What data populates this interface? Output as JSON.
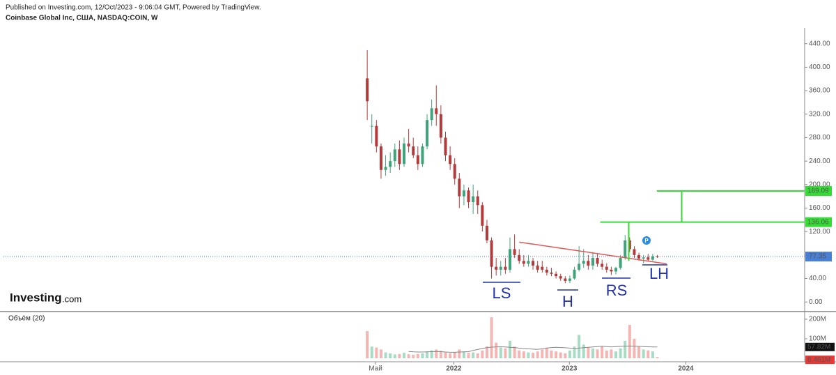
{
  "header": {
    "published": "Published on Investing.com, 12/Oct/2023 - 9:06:04 GMT, Powered by TradingView.",
    "symbol": "Coinbase Global Inc, США, NASDAQ:COIN, W"
  },
  "logo": {
    "name": "Investing",
    "suffix": ".com"
  },
  "chart_data": {
    "type": "candlestick",
    "candles": {
      "open": [
        381,
        300,
        300,
        265,
        225,
        230,
        240,
        260,
        235,
        270,
        265,
        250,
        235,
        265,
        310,
        330,
        320,
        280,
        250,
        235,
        210,
        180,
        190,
        170,
        180,
        165,
        130,
        105,
        60,
        55,
        60,
        55,
        90,
        80,
        70,
        65,
        70,
        62,
        60,
        55,
        50,
        48,
        44,
        40,
        36,
        40,
        55,
        65,
        70,
        62,
        75,
        65,
        60,
        55,
        52,
        58,
        75,
        105,
        90,
        80,
        74,
        76,
        72,
        78
      ],
      "high": [
        429,
        320,
        310,
        270,
        250,
        255,
        270,
        275,
        280,
        295,
        280,
        265,
        270,
        320,
        345,
        369,
        335,
        290,
        265,
        245,
        220,
        200,
        195,
        200,
        190,
        170,
        140,
        110,
        75,
        70,
        75,
        110,
        115,
        90,
        80,
        80,
        75,
        70,
        70,
        60,
        58,
        52,
        48,
        44,
        45,
        60,
        95,
        90,
        80,
        85,
        82,
        72,
        66,
        60,
        60,
        80,
        114,
        110,
        95,
        84,
        80,
        82,
        82,
        80
      ],
      "low": [
        310,
        270,
        255,
        210,
        215,
        220,
        230,
        225,
        230,
        255,
        245,
        225,
        230,
        260,
        300,
        300,
        270,
        240,
        225,
        200,
        160,
        165,
        160,
        150,
        150,
        120,
        100,
        40,
        45,
        45,
        48,
        50,
        75,
        65,
        60,
        60,
        55,
        50,
        50,
        45,
        44,
        40,
        36,
        32,
        32,
        38,
        52,
        58,
        55,
        55,
        60,
        55,
        50,
        46,
        47,
        55,
        72,
        85,
        75,
        70,
        66,
        70,
        70,
        75
      ],
      "close": [
        342,
        300,
        265,
        225,
        230,
        240,
        260,
        235,
        270,
        265,
        250,
        235,
        265,
        310,
        330,
        320,
        280,
        250,
        235,
        210,
        180,
        190,
        170,
        180,
        165,
        130,
        105,
        60,
        55,
        60,
        55,
        90,
        80,
        70,
        65,
        70,
        62,
        55,
        55,
        50,
        48,
        44,
        40,
        36,
        40,
        55,
        65,
        70,
        62,
        75,
        65,
        60,
        55,
        52,
        58,
        75,
        105,
        90,
        80,
        74,
        76,
        72,
        78,
        77.35
      ],
      "up_color": "#3fa37a",
      "down_color": "#b23a3a"
    },
    "xlim": [
      -79,
      95
    ],
    "xticks": [
      {
        "value": 1.8,
        "label": "Май"
      },
      {
        "value": 18.8,
        "label": "2022"
      },
      {
        "value": 43.9,
        "label": "2023"
      },
      {
        "value": 69.2,
        "label": "2024"
      }
    ],
    "ylim": [
      -14,
      467
    ],
    "yticks": [
      {
        "value": 0,
        "label": "0.00"
      },
      {
        "value": 40,
        "label": "40.00"
      },
      {
        "value": 80,
        "label": "80.00"
      },
      {
        "value": 120,
        "label": "120.00"
      },
      {
        "value": 160,
        "label": "160.00"
      },
      {
        "value": 200,
        "label": "200.00"
      },
      {
        "value": 240,
        "label": "240.00"
      },
      {
        "value": 280,
        "label": "280.00"
      },
      {
        "value": 320,
        "label": "320.00"
      },
      {
        "value": 360,
        "label": "360.00"
      },
      {
        "value": 400,
        "label": "400.00"
      },
      {
        "value": 440,
        "label": "440.00"
      }
    ],
    "last_price": 77.35,
    "last_price_color": "#4a7fd6",
    "neckline": {
      "x": [
        33,
        65
      ],
      "y": [
        102,
        65
      ],
      "color": "#e05555"
    },
    "targets": {
      "color": "#33dd33",
      "levels": [
        {
          "value": 136.06,
          "x_start": 50.6
        },
        {
          "value": 189.09,
          "x_start": 62.9
        }
      ],
      "measures": [
        {
          "x": 56.8,
          "y": [
            70,
            136.06
          ]
        },
        {
          "x": 68.3,
          "y": [
            136.06,
            189.09
          ]
        }
      ]
    },
    "pattern_labels": [
      "LS",
      "H",
      "RS",
      "LH"
    ],
    "volume": {
      "title": "Объём (20)",
      "values": [
        139,
        60,
        55,
        45,
        30,
        25,
        20,
        22,
        28,
        20,
        18,
        22,
        25,
        35,
        40,
        45,
        38,
        30,
        25,
        30,
        45,
        35,
        28,
        30,
        25,
        40,
        60,
        210,
        80,
        55,
        50,
        90,
        60,
        40,
        35,
        30,
        28,
        35,
        45,
        55,
        40,
        35,
        30,
        25,
        40,
        60,
        120,
        70,
        55,
        50,
        45,
        60,
        40,
        45,
        35,
        50,
        90,
        171,
        100,
        60,
        45,
        40,
        35,
        6.461
      ],
      "ma": [
        null,
        null,
        null,
        null,
        null,
        null,
        null,
        null,
        null,
        35,
        33,
        32,
        32,
        33,
        34,
        35,
        34,
        32,
        31,
        31,
        32,
        33,
        34,
        40,
        45,
        50,
        55,
        57,
        58,
        59,
        58,
        56,
        55,
        52,
        50,
        48,
        47,
        46,
        48,
        52,
        55,
        56,
        55,
        54,
        52,
        50,
        52,
        54,
        56,
        58,
        60,
        62,
        60,
        58,
        60,
        61,
        62,
        63,
        62,
        61,
        60,
        59,
        58,
        57.82
      ],
      "ylim": [
        0,
        232
      ],
      "yticks": [
        {
          "value": 100,
          "label": "100M"
        },
        {
          "value": 200,
          "label": "200M"
        }
      ],
      "ma_tag": {
        "value": 57.82,
        "label": "57.82M"
      },
      "last_tag": {
        "value": 6.461,
        "label": "6.461M"
      },
      "up_color": "#a6dcc4",
      "down_color": "#f5b5b2",
      "ma_color": "#888888"
    }
  }
}
